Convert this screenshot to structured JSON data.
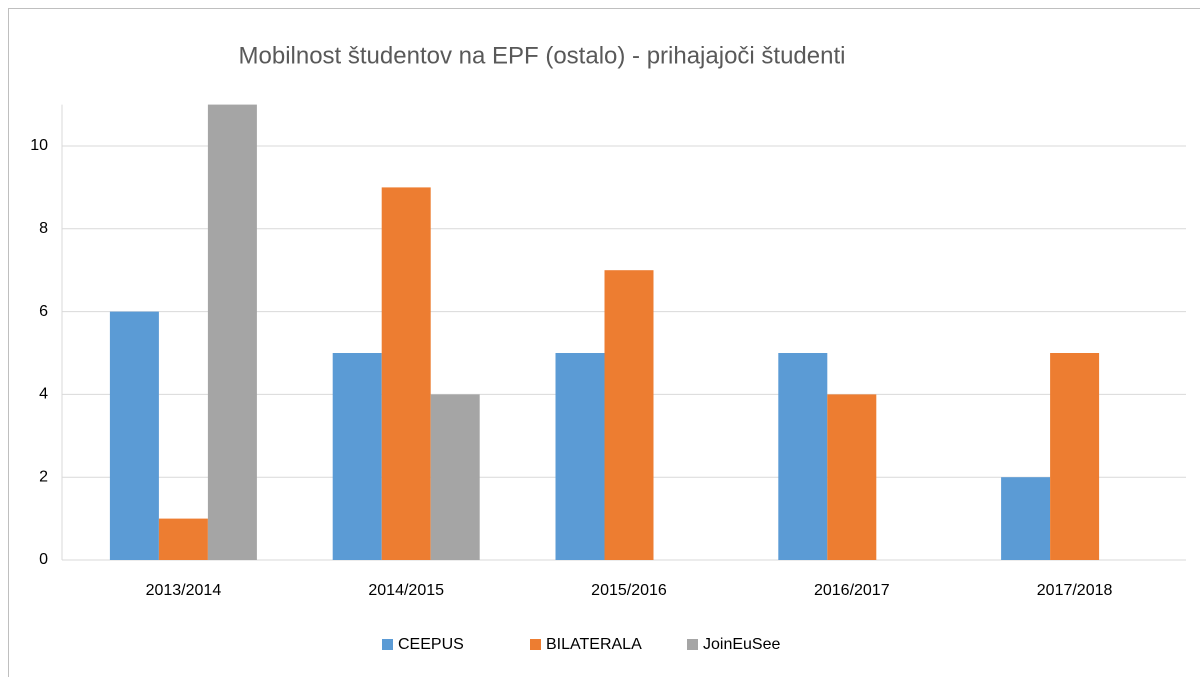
{
  "chart_data": {
    "type": "bar",
    "title": "Mobilnost študentov na EPF (ostalo) - prihajajoči študenti",
    "categories": [
      "2013/2014",
      "2014/2015",
      "2015/2016",
      "2016/2017",
      "2017/2018"
    ],
    "series": [
      {
        "name": "CEEPUS",
        "color": "#5b9bd5",
        "values": [
          6,
          5,
          5,
          5,
          2
        ]
      },
      {
        "name": "BILATERALA",
        "color": "#ed7d31",
        "values": [
          1,
          9,
          7,
          4,
          5
        ]
      },
      {
        "name": "JoinEuSee",
        "color": "#a5a5a5",
        "values": [
          11,
          4,
          0,
          0,
          0
        ]
      }
    ],
    "ylim": [
      0,
      11
    ],
    "yticks": [
      0,
      2,
      4,
      6,
      8,
      10
    ],
    "grid": true,
    "legend": "bottom"
  }
}
